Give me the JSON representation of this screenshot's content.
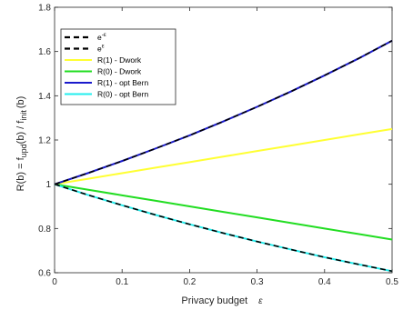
{
  "chart_data": {
    "type": "line",
    "xlabel": "Privacy budget ε",
    "ylabel": "R(b) = f_upd(b) / f_init(b)",
    "xlim": [
      0,
      0.5
    ],
    "ylim": [
      0.6,
      1.8
    ],
    "xticks": [
      0,
      0.1,
      0.2,
      0.3,
      0.4,
      0.5
    ],
    "xtick_labels": [
      "0",
      "0.1",
      "0.2",
      "0.3",
      "0.4",
      "0.5"
    ],
    "yticks": [
      0.6,
      0.8,
      1.0,
      1.2,
      1.4,
      1.6,
      1.8
    ],
    "ytick_labels": [
      "0.6",
      "0.8",
      "1",
      "1.2",
      "1.4",
      "1.6",
      "1.8"
    ],
    "grid": false,
    "legend_position": "top-left",
    "x": [
      0,
      0.05,
      0.1,
      0.15,
      0.2,
      0.25,
      0.3,
      0.35,
      0.4,
      0.45,
      0.5
    ],
    "series": [
      {
        "name": "R(1) - Dwork",
        "color": "#ffff33",
        "style": "solid",
        "values": [
          1.0,
          1.025,
          1.05,
          1.075,
          1.1,
          1.125,
          1.15,
          1.175,
          1.2,
          1.225,
          1.25
        ]
      },
      {
        "name": "R(0) - Dwork",
        "color": "#22dd22",
        "style": "solid",
        "values": [
          1.0,
          0.975,
          0.95,
          0.925,
          0.9,
          0.875,
          0.85,
          0.825,
          0.8,
          0.775,
          0.75
        ]
      },
      {
        "name": "R(1) - opt Bern",
        "color": "#1a1acc",
        "style": "solid",
        "values": [
          1.0,
          1.051,
          1.105,
          1.162,
          1.221,
          1.284,
          1.35,
          1.419,
          1.492,
          1.568,
          1.649
        ]
      },
      {
        "name": "R(0) - opt Bern",
        "color": "#22eeee",
        "style": "solid",
        "values": [
          1.0,
          0.951,
          0.905,
          0.861,
          0.819,
          0.779,
          0.741,
          0.705,
          0.67,
          0.638,
          0.607
        ]
      },
      {
        "name": "e^-ε",
        "color": "#000000",
        "style": "dashed",
        "values": [
          1.0,
          0.951,
          0.905,
          0.861,
          0.819,
          0.779,
          0.741,
          0.705,
          0.67,
          0.638,
          0.607
        ]
      },
      {
        "name": "e^ε",
        "color": "#000000",
        "style": "dashed",
        "values": [
          1.0,
          1.051,
          1.105,
          1.162,
          1.221,
          1.284,
          1.35,
          1.419,
          1.492,
          1.568,
          1.649
        ]
      }
    ],
    "legend": [
      {
        "label": "e",
        "sup": "-ε",
        "color": "#000000",
        "style": "dashed"
      },
      {
        "label": "e",
        "sup": "ε",
        "color": "#000000",
        "style": "dashed"
      },
      {
        "label": "R(1) - Dwork",
        "sup": "",
        "color": "#ffff33",
        "style": "solid"
      },
      {
        "label": "R(0) - Dwork",
        "sup": "",
        "color": "#22dd22",
        "style": "solid"
      },
      {
        "label": "R(1) - opt Bern",
        "sup": "",
        "color": "#1a1acc",
        "style": "solid"
      },
      {
        "label": "R(0) - opt Bern",
        "sup": "",
        "color": "#22eeee",
        "style": "solid"
      }
    ]
  },
  "labels": {
    "xlabel_main": "Privacy budget",
    "xlabel_symbol": "ε",
    "ylabel_part1": "R(b) = f",
    "ylabel_sub1": "upd",
    "ylabel_part2": "(b) / f",
    "ylabel_sub2": "init",
    "ylabel_part3": "(b)"
  }
}
